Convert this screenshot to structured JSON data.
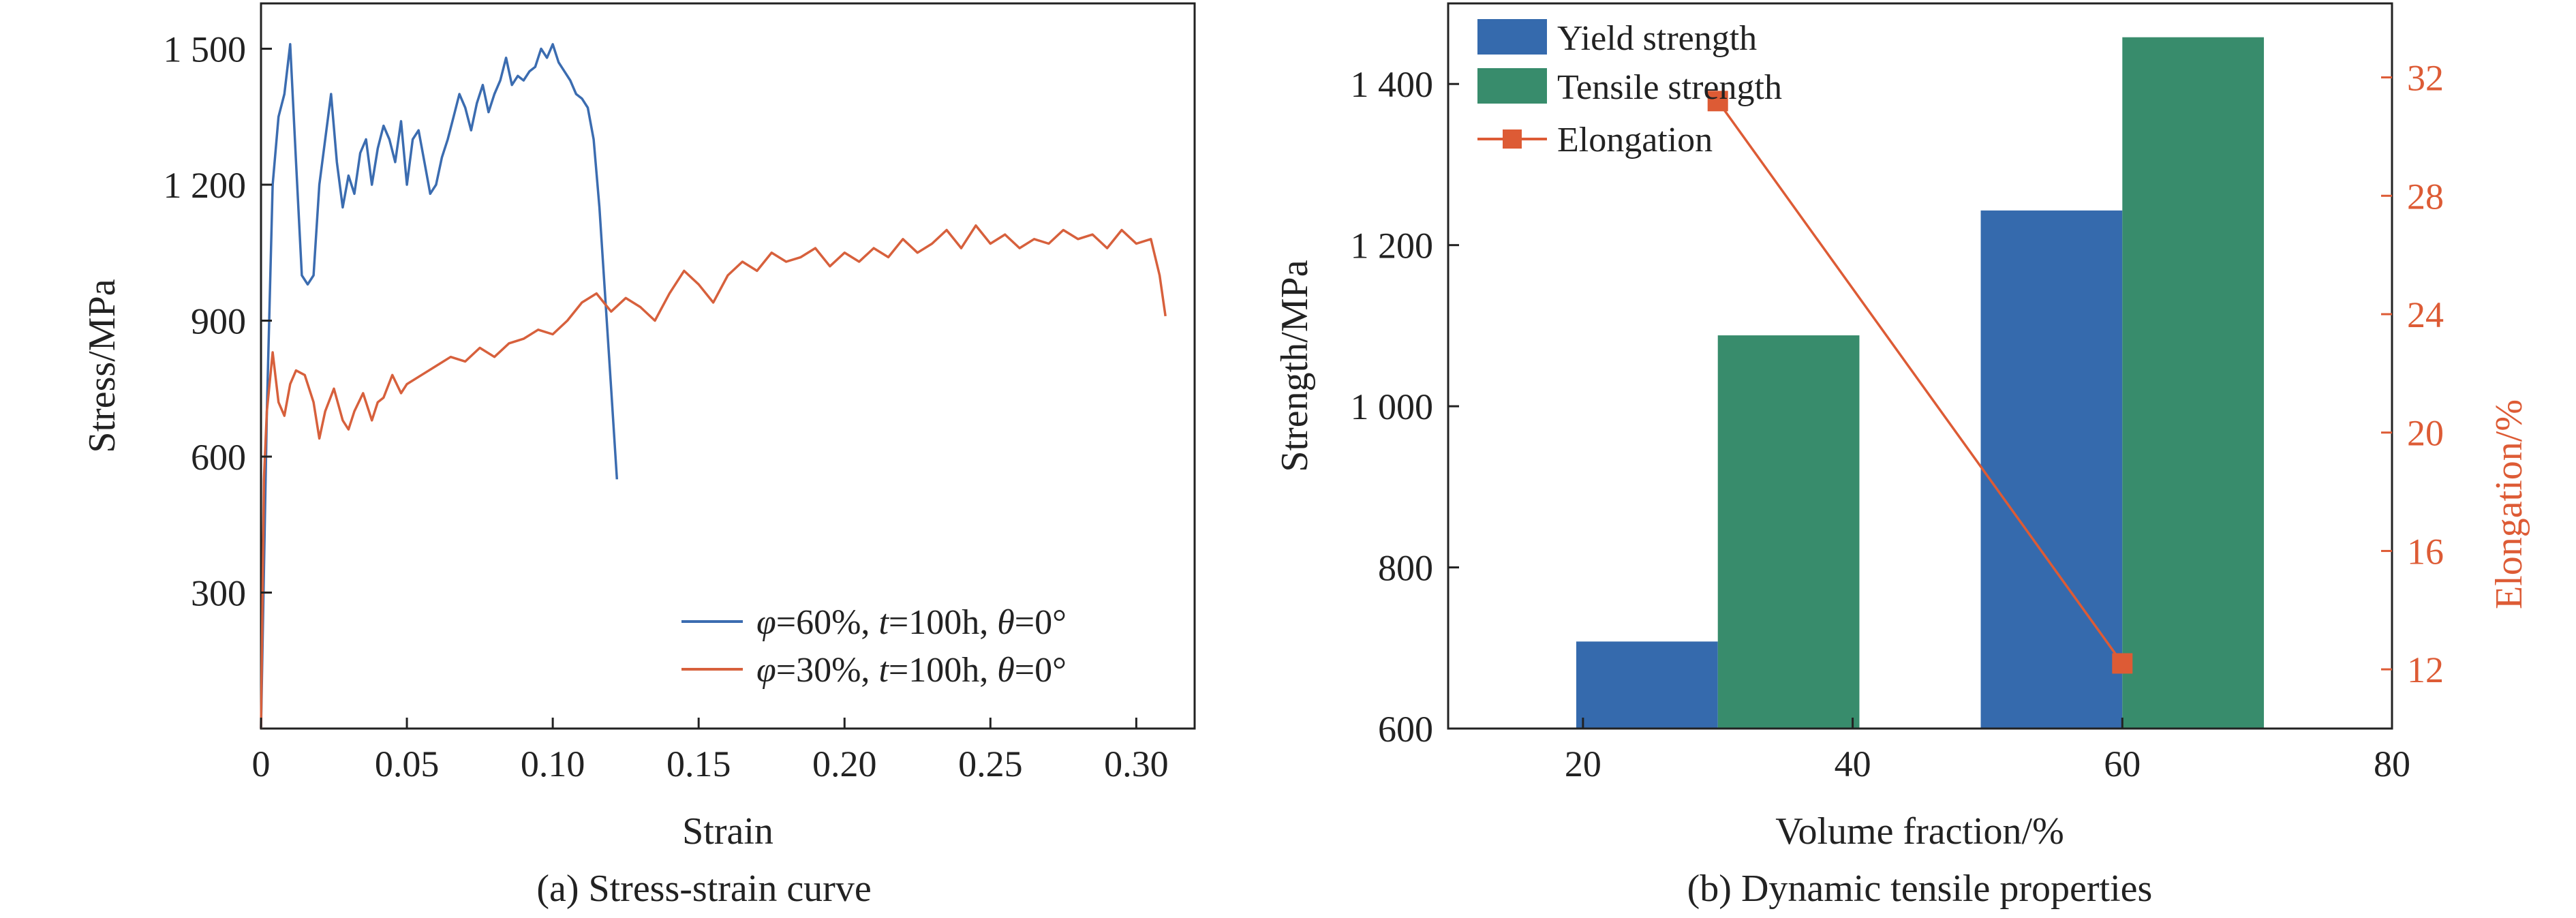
{
  "colors": {
    "blue": "#3b6cb0",
    "orange": "#d7603c",
    "yield_bar": "#356aad",
    "tensile_bar": "#388c6c",
    "elongation": "#dd5b35",
    "axis": "#222222"
  },
  "chart_data": [
    {
      "type": "line",
      "caption": "(a) Stress-strain curve",
      "xlabel": "Strain",
      "ylabel": "Stress/MPa",
      "xlim": [
        0,
        0.32
      ],
      "ylim": [
        0,
        1600
      ],
      "xticks": [
        {
          "value": 0,
          "label": "0"
        },
        {
          "value": 0.05,
          "label": "0.05"
        },
        {
          "value": 0.1,
          "label": "0.10"
        },
        {
          "value": 0.15,
          "label": "0.15"
        },
        {
          "value": 0.2,
          "label": "0.20"
        },
        {
          "value": 0.25,
          "label": "0.25"
        },
        {
          "value": 0.3,
          "label": "0.30"
        }
      ],
      "yticks": [
        {
          "value": 300,
          "label": "300"
        },
        {
          "value": 600,
          "label": "600"
        },
        {
          "value": 900,
          "label": "900"
        },
        {
          "value": 1200,
          "label": "1 200"
        },
        {
          "value": 1500,
          "label": "1 500"
        }
      ],
      "legend_position": "bottom-right",
      "series": [
        {
          "name_parts": [
            "φ",
            "=60%, ",
            "t",
            "=100h, ",
            "θ",
            "=0°"
          ],
          "color": "#3b6cb0",
          "x": [
            0,
            0.002,
            0.004,
            0.006,
            0.008,
            0.01,
            0.012,
            0.014,
            0.016,
            0.018,
            0.02,
            0.022,
            0.024,
            0.026,
            0.028,
            0.03,
            0.032,
            0.034,
            0.036,
            0.038,
            0.04,
            0.042,
            0.044,
            0.046,
            0.048,
            0.05,
            0.052,
            0.054,
            0.056,
            0.058,
            0.06,
            0.062,
            0.064,
            0.066,
            0.068,
            0.07,
            0.072,
            0.074,
            0.076,
            0.078,
            0.08,
            0.082,
            0.084,
            0.086,
            0.088,
            0.09,
            0.092,
            0.094,
            0.096,
            0.098,
            0.1,
            0.102,
            0.104,
            0.106,
            0.108,
            0.11,
            0.112,
            0.114,
            0.116,
            0.118,
            0.12,
            0.122
          ],
          "values": [
            0,
            700,
            1200,
            1350,
            1400,
            1510,
            1250,
            1000,
            980,
            1000,
            1200,
            1300,
            1400,
            1250,
            1150,
            1220,
            1180,
            1270,
            1300,
            1200,
            1280,
            1330,
            1300,
            1250,
            1340,
            1200,
            1300,
            1320,
            1250,
            1180,
            1200,
            1260,
            1300,
            1350,
            1400,
            1370,
            1320,
            1380,
            1420,
            1360,
            1400,
            1430,
            1480,
            1420,
            1440,
            1430,
            1450,
            1460,
            1500,
            1480,
            1510,
            1470,
            1450,
            1430,
            1400,
            1390,
            1370,
            1300,
            1150,
            950,
            750,
            550
          ]
        },
        {
          "name_parts": [
            "φ",
            "=30%, ",
            "t",
            "=100h, ",
            "θ",
            "=0°"
          ],
          "color": "#d7603c",
          "x": [
            0,
            0.001,
            0.002,
            0.004,
            0.006,
            0.008,
            0.01,
            0.012,
            0.015,
            0.018,
            0.02,
            0.022,
            0.025,
            0.028,
            0.03,
            0.032,
            0.035,
            0.038,
            0.04,
            0.042,
            0.045,
            0.048,
            0.05,
            0.055,
            0.06,
            0.065,
            0.07,
            0.075,
            0.08,
            0.085,
            0.09,
            0.095,
            0.1,
            0.105,
            0.11,
            0.115,
            0.12,
            0.125,
            0.13,
            0.135,
            0.14,
            0.145,
            0.15,
            0.155,
            0.16,
            0.165,
            0.17,
            0.175,
            0.18,
            0.185,
            0.19,
            0.195,
            0.2,
            0.205,
            0.21,
            0.215,
            0.22,
            0.225,
            0.23,
            0.235,
            0.24,
            0.245,
            0.25,
            0.255,
            0.26,
            0.265,
            0.27,
            0.275,
            0.28,
            0.285,
            0.29,
            0.295,
            0.3,
            0.305,
            0.308,
            0.31
          ],
          "values": [
            0,
            550,
            700,
            830,
            720,
            690,
            760,
            790,
            780,
            720,
            640,
            700,
            750,
            680,
            660,
            700,
            740,
            680,
            720,
            730,
            780,
            740,
            760,
            780,
            800,
            820,
            810,
            840,
            820,
            850,
            860,
            880,
            870,
            900,
            940,
            960,
            920,
            950,
            930,
            900,
            960,
            1010,
            980,
            940,
            1000,
            1030,
            1010,
            1050,
            1030,
            1040,
            1060,
            1020,
            1050,
            1030,
            1060,
            1040,
            1080,
            1050,
            1070,
            1100,
            1060,
            1110,
            1070,
            1090,
            1060,
            1080,
            1070,
            1100,
            1080,
            1090,
            1060,
            1100,
            1070,
            1080,
            1000,
            910
          ]
        }
      ]
    },
    {
      "type": "bar",
      "caption": "(b) Dynamic tensile properties",
      "xlabel": "Volume fraction/%",
      "ylabel": "Strength/MPa",
      "y2label": "Elongation/%",
      "xlim": [
        10,
        80
      ],
      "ylim": [
        600,
        1500
      ],
      "y2lim": [
        10,
        34.5
      ],
      "xticks": [
        {
          "value": 20,
          "label": "20"
        },
        {
          "value": 40,
          "label": "40"
        },
        {
          "value": 60,
          "label": "60"
        },
        {
          "value": 80,
          "label": "80"
        }
      ],
      "yticks": [
        {
          "value": 600,
          "label": "600"
        },
        {
          "value": 800,
          "label": "800"
        },
        {
          "value": 1000,
          "label": "1 000"
        },
        {
          "value": 1200,
          "label": "1 200"
        },
        {
          "value": 1400,
          "label": "1 400"
        }
      ],
      "y2ticks": [
        {
          "value": 12,
          "label": "12"
        },
        {
          "value": 16,
          "label": "16"
        },
        {
          "value": 20,
          "label": "20"
        },
        {
          "value": 24,
          "label": "24"
        },
        {
          "value": 28,
          "label": "28"
        },
        {
          "value": 32,
          "label": "32"
        }
      ],
      "categories": [
        30,
        60
      ],
      "bar_width_units": 10.5,
      "legend_position": "top-left",
      "series": [
        {
          "name": "Yield strength",
          "color": "#356aad",
          "values": [
            708,
            1243
          ],
          "offset": -5.25
        },
        {
          "name": "Tensile strength",
          "color": "#388c6c",
          "values": [
            1088,
            1458
          ],
          "offset": 5.25
        }
      ],
      "line_series": {
        "name": "Elongation",
        "color": "#dd5b35",
        "axis": "right",
        "x": [
          30,
          60
        ],
        "values": [
          31.2,
          12.2
        ]
      }
    }
  ]
}
